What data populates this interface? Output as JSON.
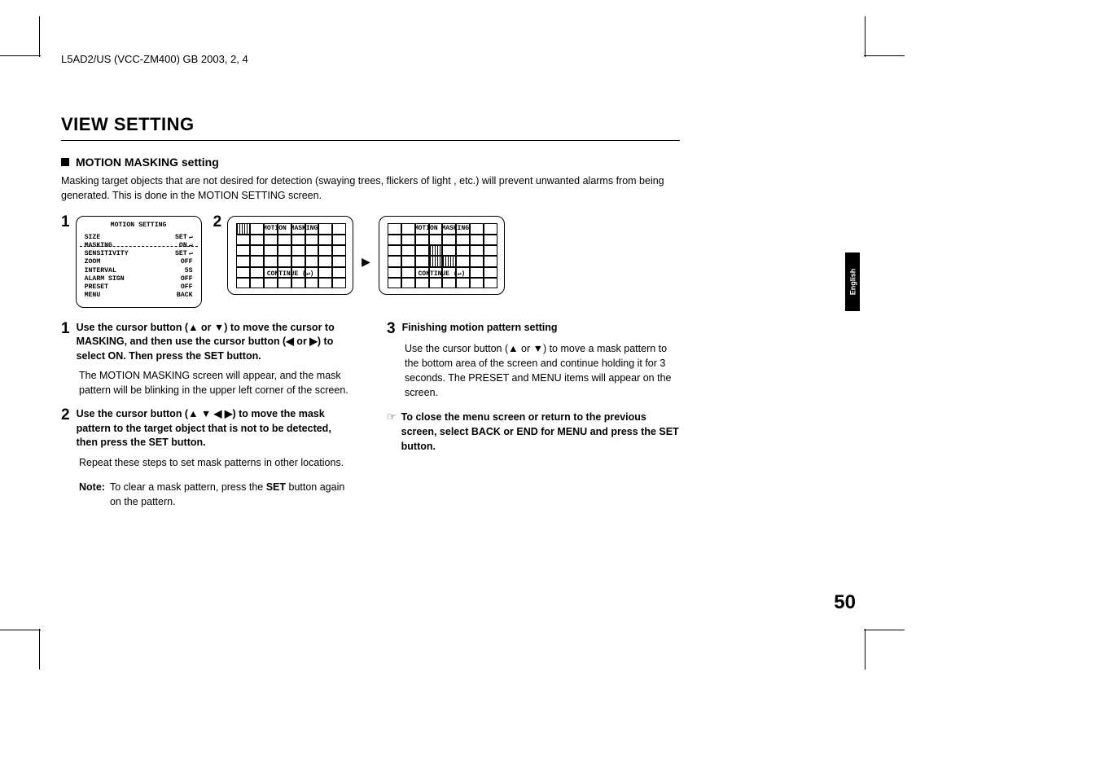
{
  "header": "L5AD2/US (VCC-ZM400)   GB   2003, 2, 4",
  "title": "VIEW SETTING",
  "subhead": "MOTION MASKING setting",
  "intro": "Masking target objects that are not desired for detection (swaying trees, flickers of light , etc.) will prevent unwanted alarms from being generated. This is done in the MOTION SETTING screen.",
  "diagram": {
    "num1": "1",
    "num2": "2",
    "menu": {
      "title": "MOTION SETTING",
      "rows": [
        {
          "l": "SIZE",
          "r": "SET",
          "arrowClass": "menu-arrow"
        },
        {
          "l": "MASKING",
          "r": "ON",
          "dashed": true,
          "arrowClass": "menu-arrow"
        },
        {
          "l": "SENSITIVITY",
          "r": "SET",
          "arrowClass": "menu-arrow"
        },
        {
          "l": "ZOOM",
          "r": "OFF"
        },
        {
          "l": "INTERVAL",
          "r": "5S"
        },
        {
          "l": "ALARM SIGN",
          "r": "OFF"
        },
        {
          "l": "",
          "r": ""
        },
        {
          "l": "PRESET",
          "r": "OFF"
        },
        {
          "l": "MENU",
          "r": "BACK"
        }
      ]
    },
    "grid_title": "MOTION MASKING",
    "grid_cont": "CONTINUE (↵)"
  },
  "steps_left": [
    {
      "num": "1",
      "head": "Use the cursor button (▲ or ▼) to move the cursor to MASKING, and then use the cursor button (◀ or ▶) to select ON. Then press the SET button.",
      "body": "The MOTION MASKING screen will appear, and the mask pattern will be blinking in the upper left corner of the screen."
    },
    {
      "num": "2",
      "head": "Use the cursor button (▲ ▼ ◀ ▶) to move the mask pattern to the target object that is not to be detected, then press the SET button.",
      "body": "Repeat these steps to set mask patterns in other locations.",
      "note_label": "Note:",
      "note_text_a": "To clear a mask pattern, press the ",
      "note_bold": "SET",
      "note_text_b": " button again on the pattern."
    }
  ],
  "steps_right": [
    {
      "num": "3",
      "head": "Finishing motion pattern setting",
      "body": "Use the cursor button (▲ or ▼) to move a mask pattern to the bottom area of the screen and continue holding it for 3 seconds. The PRESET and MENU items will appear on the screen."
    }
  ],
  "tip_icon": "☞",
  "tip_text": "To close the menu screen or return to the previous screen, select BACK or END for MENU and press the SET button.",
  "lang_tab": "English",
  "page_num": "50"
}
